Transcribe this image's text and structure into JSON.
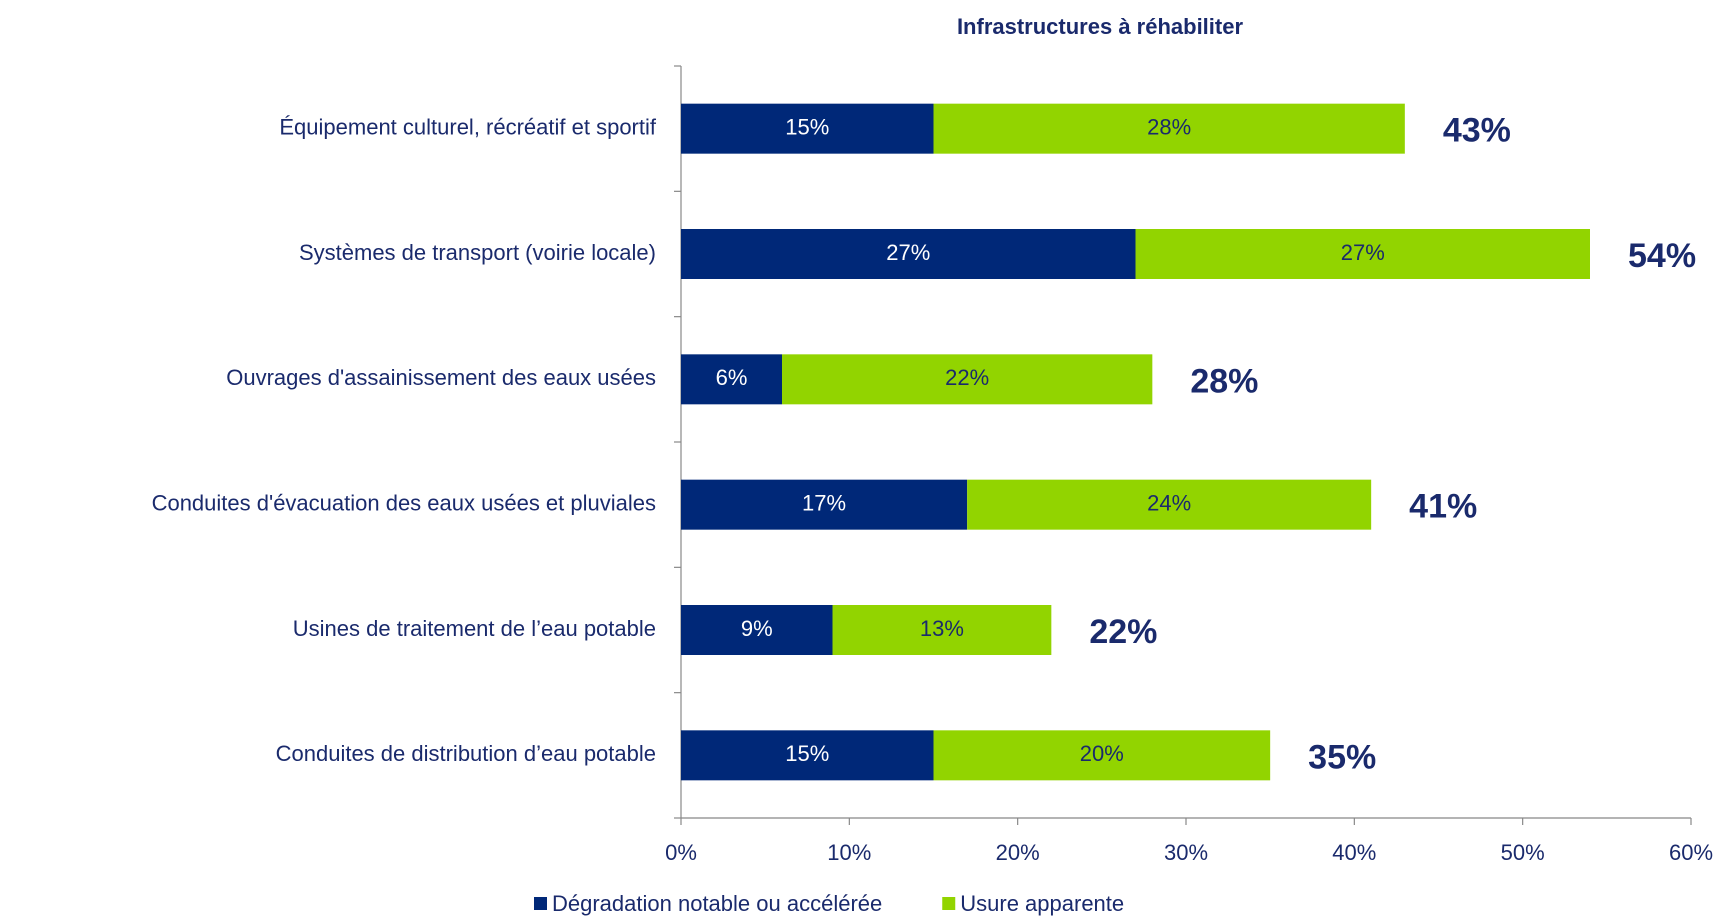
{
  "chart_data": {
    "type": "stacked_bar_horizontal",
    "title": "Infrastructures à réhabiliter",
    "categories": [
      "Équipement culturel, récréatif et sportif",
      "Systèmes de transport (voirie locale)",
      "Ouvrages d'assainissement des eaux usées",
      "Conduites d'évacuation des eaux usées et pluviales",
      "Usines de traitement de l’eau potable",
      "Conduites de distribution d’eau potable"
    ],
    "series": [
      {
        "name": "Dégradation notable ou accélérée",
        "color": "#002878",
        "values": [
          15,
          27,
          6,
          17,
          9,
          15
        ],
        "value_labels": [
          "15%",
          "27%",
          "6%",
          "17%",
          "9%",
          "15%"
        ]
      },
      {
        "name": "Usure apparente",
        "color": "#92d400",
        "values": [
          28,
          27,
          22,
          24,
          13,
          20
        ],
        "value_labels": [
          "28%",
          "27%",
          "22%",
          "24%",
          "13%",
          "20%"
        ]
      }
    ],
    "totals": [
      43,
      54,
      28,
      41,
      22,
      35
    ],
    "total_labels": [
      "43%",
      "54%",
      "28%",
      "41%",
      "22%",
      "35%"
    ],
    "xlim": [
      0,
      60
    ],
    "xticks": [
      {
        "value": 0,
        "label": "0%"
      },
      {
        "value": 10,
        "label": "10%"
      },
      {
        "value": 20,
        "label": "20%"
      },
      {
        "value": 30,
        "label": "30%"
      },
      {
        "value": 40,
        "label": "40%"
      },
      {
        "value": 50,
        "label": "50%"
      },
      {
        "value": 60,
        "label": "60%"
      }
    ],
    "legend": "bottom"
  }
}
